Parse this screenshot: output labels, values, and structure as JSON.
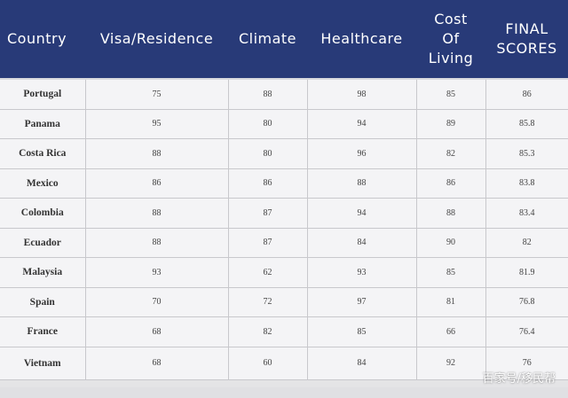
{
  "table": {
    "headers": {
      "country": "Country",
      "visa": "Visa/Residence",
      "climate": "Climate",
      "healthcare": "Healthcare",
      "cost_line1": "Cost",
      "cost_line2": "Of",
      "cost_line3": "Living",
      "final_line1": "FINAL",
      "final_line2": "SCORES"
    },
    "rows": [
      {
        "country": "Portugal",
        "visa": "75",
        "climate": "88",
        "healthcare": "98",
        "cost": "85",
        "final": "86"
      },
      {
        "country": "Panama",
        "visa": "95",
        "climate": "80",
        "healthcare": "94",
        "cost": "89",
        "final": "85.8"
      },
      {
        "country": "Costa Rica",
        "visa": "88",
        "climate": "80",
        "healthcare": "96",
        "cost": "82",
        "final": "85.3"
      },
      {
        "country": "Mexico",
        "visa": "86",
        "climate": "86",
        "healthcare": "88",
        "cost": "86",
        "final": "83.8"
      },
      {
        "country": "Colombia",
        "visa": "88",
        "climate": "87",
        "healthcare": "94",
        "cost": "88",
        "final": "83.4"
      },
      {
        "country": "Ecuador",
        "visa": "88",
        "climate": "87",
        "healthcare": "84",
        "cost": "90",
        "final": "82"
      },
      {
        "country": "Malaysia",
        "visa": "93",
        "climate": "62",
        "healthcare": "93",
        "cost": "85",
        "final": "81.9"
      },
      {
        "country": "Spain",
        "visa": "70",
        "climate": "72",
        "healthcare": "97",
        "cost": "81",
        "final": "76.8"
      },
      {
        "country": "France",
        "visa": "68",
        "climate": "82",
        "healthcare": "85",
        "cost": "66",
        "final": "76.4"
      },
      {
        "country": "Vietnam",
        "visa": "68",
        "climate": "60",
        "healthcare": "84",
        "cost": "92",
        "final": "76"
      }
    ]
  },
  "watermark": "百家号/移民帮",
  "colors": {
    "header_bg": "#283a78",
    "header_text": "#ffffff",
    "row_bg": "#f4f4f6",
    "grid_line": "#c8c8cc"
  }
}
